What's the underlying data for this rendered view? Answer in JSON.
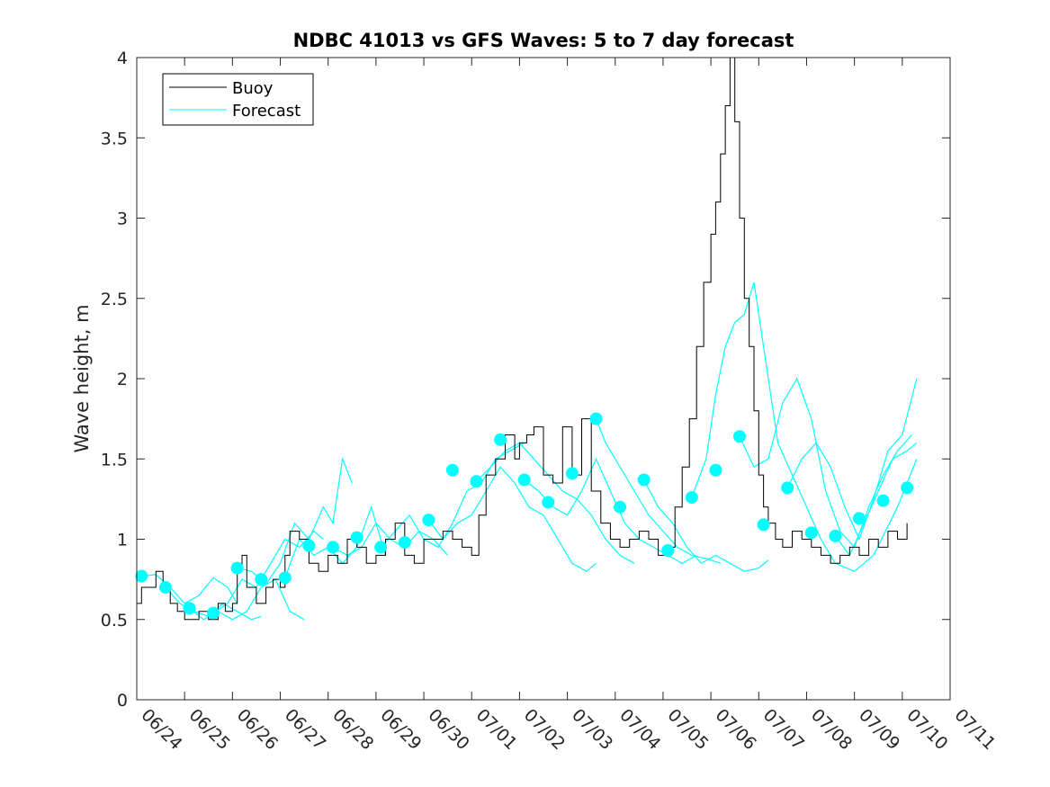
{
  "chart_data": {
    "type": "line",
    "title": "NDBC 41013 vs GFS Waves: 5 to 7 day forecast",
    "xlabel": "",
    "ylabel": "Wave height, m",
    "x_range": [
      "06/24",
      "07/11"
    ],
    "ylim": [
      0,
      4
    ],
    "y_ticks": [
      "0",
      "0.5",
      "1",
      "1.5",
      "2",
      "2.5",
      "3",
      "3.5",
      "4"
    ],
    "x_ticks": [
      "06/24",
      "06/25",
      "06/26",
      "06/27",
      "06/28",
      "06/29",
      "06/30",
      "07/01",
      "07/02",
      "07/03",
      "07/04",
      "07/05",
      "07/06",
      "07/07",
      "07/08",
      "07/09",
      "07/10",
      "07/11"
    ],
    "grid": false,
    "legend_position": "top-left",
    "legend": [
      "Buoy",
      "Forecast"
    ],
    "colors": {
      "buoy": "#000000",
      "forecast": "#00ffff"
    },
    "series": [
      {
        "name": "Buoy",
        "x_days": [
          0,
          0.1,
          0.25,
          0.4,
          0.55,
          0.7,
          0.85,
          1,
          1.15,
          1.3,
          1.5,
          1.7,
          1.85,
          2,
          2.1,
          2.2,
          2.3,
          2.5,
          2.7,
          2.85,
          3,
          3.1,
          3.2,
          3.4,
          3.6,
          3.8,
          4,
          4.2,
          4.4,
          4.6,
          4.8,
          5,
          5.2,
          5.4,
          5.6,
          5.8,
          6,
          6.2,
          6.4,
          6.6,
          6.8,
          7,
          7.15,
          7.3,
          7.5,
          7.7,
          7.9,
          8,
          8.15,
          8.3,
          8.5,
          8.7,
          8.9,
          9.1,
          9.3,
          9.5,
          9.7,
          9.9,
          10.1,
          10.3,
          10.5,
          10.7,
          10.9,
          11.1,
          11.25,
          11.4,
          11.55,
          11.7,
          11.85,
          12,
          12.1,
          12.2,
          12.3,
          12.4,
          12.5,
          12.6,
          12.7,
          12.8,
          12.9,
          13,
          13.1,
          13.2,
          13.35,
          13.5,
          13.7,
          13.9,
          14.1,
          14.3,
          14.5,
          14.7,
          14.9,
          15.1,
          15.3,
          15.5,
          15.7,
          15.9,
          16.1
        ],
        "values": [
          0.6,
          0.7,
          0.7,
          0.8,
          0.7,
          0.6,
          0.55,
          0.5,
          0.5,
          0.55,
          0.5,
          0.6,
          0.55,
          0.6,
          0.8,
          0.9,
          0.7,
          0.6,
          0.7,
          0.75,
          0.7,
          0.9,
          1.05,
          1.0,
          0.85,
          0.8,
          0.9,
          0.85,
          1.0,
          0.95,
          0.85,
          0.9,
          1.0,
          1.1,
          0.9,
          0.85,
          1.0,
          1.0,
          1.05,
          1.0,
          0.95,
          0.9,
          1.15,
          1.4,
          1.5,
          1.65,
          1.5,
          1.6,
          1.65,
          1.7,
          1.4,
          1.35,
          1.7,
          1.4,
          1.75,
          1.3,
          1.1,
          1.0,
          0.95,
          1.0,
          1.05,
          1.0,
          0.9,
          0.95,
          1.2,
          1.45,
          1.75,
          2.2,
          2.6,
          2.9,
          3.1,
          3.4,
          3.7,
          4.0,
          3.6,
          3.0,
          2.5,
          2.2,
          1.8,
          1.4,
          1.2,
          1.1,
          1.0,
          0.95,
          1.05,
          1.0,
          0.95,
          0.9,
          0.85,
          0.9,
          0.95,
          0.9,
          1.0,
          0.95,
          1.05,
          1.0,
          1.1
        ]
      },
      {
        "name": "Forecast",
        "markers": [
          {
            "x": 0.1,
            "y": 0.77
          },
          {
            "x": 0.6,
            "y": 0.7
          },
          {
            "x": 1.1,
            "y": 0.57
          },
          {
            "x": 1.6,
            "y": 0.54
          },
          {
            "x": 2.1,
            "y": 0.82
          },
          {
            "x": 2.6,
            "y": 0.75
          },
          {
            "x": 3.1,
            "y": 0.76
          },
          {
            "x": 3.6,
            "y": 0.96
          },
          {
            "x": 4.1,
            "y": 0.95
          },
          {
            "x": 4.6,
            "y": 1.01
          },
          {
            "x": 5.1,
            "y": 0.95
          },
          {
            "x": 5.6,
            "y": 0.98
          },
          {
            "x": 6.1,
            "y": 1.12
          },
          {
            "x": 6.6,
            "y": 1.43
          },
          {
            "x": 7.1,
            "y": 1.36
          },
          {
            "x": 7.6,
            "y": 1.62
          },
          {
            "x": 8.1,
            "y": 1.37
          },
          {
            "x": 8.6,
            "y": 1.23
          },
          {
            "x": 9.1,
            "y": 1.41
          },
          {
            "x": 9.6,
            "y": 1.75
          },
          {
            "x": 10.1,
            "y": 1.2
          },
          {
            "x": 10.6,
            "y": 1.37
          },
          {
            "x": 11.1,
            "y": 0.93
          },
          {
            "x": 11.6,
            "y": 1.26
          },
          {
            "x": 12.1,
            "y": 1.43
          },
          {
            "x": 12.6,
            "y": 1.64
          },
          {
            "x": 13.1,
            "y": 1.09
          },
          {
            "x": 13.6,
            "y": 1.32
          },
          {
            "x": 14.1,
            "y": 1.04
          },
          {
            "x": 14.6,
            "y": 1.02
          },
          {
            "x": 15.1,
            "y": 1.13
          },
          {
            "x": 15.6,
            "y": 1.24
          },
          {
            "x": 16.1,
            "y": 1.32
          }
        ],
        "traces": [
          {
            "x": [
              0.1,
              0.4,
              0.7,
              1.0,
              1.3,
              1.6,
              1.9,
              2.1
            ],
            "values": [
              0.77,
              0.78,
              0.7,
              0.6,
              0.65,
              0.76,
              0.7,
              0.6
            ]
          },
          {
            "x": [
              0.6,
              0.9,
              1.2,
              1.5,
              1.8,
              2.1,
              2.4,
              2.6
            ],
            "values": [
              0.7,
              0.6,
              0.55,
              0.52,
              0.6,
              0.55,
              0.5,
              0.52
            ]
          },
          {
            "x": [
              1.1,
              1.4,
              1.7,
              2.0,
              2.3,
              2.6,
              2.9,
              3.2,
              3.5
            ],
            "values": [
              0.57,
              0.5,
              0.55,
              0.5,
              0.55,
              0.7,
              0.75,
              0.55,
              0.5
            ]
          },
          {
            "x": [
              1.6,
              1.9,
              2.2,
              2.5,
              2.8,
              3.1,
              3.4,
              3.7,
              3.9
            ],
            "values": [
              0.54,
              0.6,
              0.75,
              0.7,
              0.85,
              1.0,
              0.95,
              1.05,
              1.0
            ]
          },
          {
            "x": [
              2.1,
              2.4,
              2.7,
              3.0,
              3.3,
              3.6,
              3.9,
              4.1,
              4.3,
              4.5
            ],
            "values": [
              0.82,
              0.8,
              0.72,
              0.85,
              1.1,
              1.0,
              1.2,
              1.1,
              1.5,
              1.35
            ]
          },
          {
            "x": [
              3.1,
              3.4,
              3.7,
              4.0,
              4.3,
              4.6,
              4.9,
              5.2
            ],
            "values": [
              0.76,
              1.0,
              0.9,
              0.95,
              0.85,
              0.95,
              1.2,
              0.9
            ]
          },
          {
            "x": [
              4.1,
              4.4,
              4.7,
              5.0,
              5.3,
              5.6,
              5.9,
              6.2,
              6.5
            ],
            "values": [
              0.95,
              0.9,
              0.95,
              1.1,
              1.0,
              0.95,
              1.05,
              1.0,
              0.9
            ]
          },
          {
            "x": [
              5.1,
              5.4,
              5.7,
              6.0,
              6.3,
              6.6,
              6.9,
              7.2,
              7.5,
              7.8,
              8.1
            ],
            "values": [
              0.95,
              1.05,
              1.15,
              1.0,
              0.95,
              1.1,
              1.3,
              1.35,
              1.5,
              1.55,
              1.6
            ]
          },
          {
            "x": [
              6.1,
              6.4,
              6.7,
              7.0,
              7.3,
              7.6,
              7.9,
              8.2,
              8.5,
              8.8,
              9.1,
              9.4,
              9.6
            ],
            "values": [
              1.12,
              1.0,
              1.1,
              1.15,
              1.3,
              1.45,
              1.35,
              1.2,
              1.15,
              1.0,
              0.85,
              0.8,
              0.85
            ]
          },
          {
            "x": [
              7.1,
              7.4,
              7.7,
              8.0,
              8.3,
              8.6,
              8.9,
              9.2,
              9.5,
              9.8,
              10.1,
              10.4
            ],
            "values": [
              1.36,
              1.45,
              1.55,
              1.6,
              1.5,
              1.4,
              1.3,
              1.25,
              1.15,
              1.0,
              0.9,
              0.85
            ]
          },
          {
            "x": [
              8.1,
              8.4,
              8.7,
              9.0,
              9.3,
              9.6,
              9.9,
              10.2,
              10.5,
              10.8,
              11.1,
              11.4,
              11.7
            ],
            "values": [
              1.37,
              1.3,
              1.2,
              1.15,
              1.3,
              1.5,
              1.3,
              1.1,
              1.0,
              0.95,
              0.9,
              0.85,
              0.9
            ]
          },
          {
            "x": [
              9.6,
              9.8,
              10.1,
              10.4,
              10.7,
              11.0,
              11.3,
              11.6,
              11.9,
              12.2
            ],
            "values": [
              1.75,
              1.6,
              1.45,
              1.3,
              1.15,
              1.05,
              0.95,
              0.9,
              0.88,
              0.85
            ]
          },
          {
            "x": [
              10.6,
              10.9,
              11.2,
              11.5,
              11.8,
              12.1,
              12.4,
              12.7,
              13.0,
              13.2
            ],
            "values": [
              1.37,
              1.2,
              1.1,
              0.95,
              0.85,
              0.9,
              0.85,
              0.8,
              0.82,
              0.87
            ]
          },
          {
            "x": [
              11.6,
              11.9,
              12.1,
              12.3,
              12.5,
              12.7,
              12.9,
              13.1,
              13.4,
              13.7,
              14.0,
              14.3,
              14.6,
              15.0,
              15.4,
              15.9,
              16.3
            ],
            "values": [
              1.26,
              1.5,
              1.9,
              2.2,
              2.35,
              2.4,
              2.6,
              2.2,
              1.6,
              1.4,
              1.2,
              1.0,
              0.85,
              0.8,
              0.9,
              1.2,
              1.5
            ]
          },
          {
            "x": [
              12.6,
              12.9,
              13.2,
              13.5,
              13.8,
              14.1,
              14.4,
              14.7,
              15.0,
              15.3,
              15.6,
              15.9,
              16.2
            ],
            "values": [
              1.64,
              1.45,
              1.5,
              1.85,
              2.0,
              1.75,
              1.3,
              1.05,
              0.95,
              1.2,
              1.4,
              1.55,
              1.65
            ]
          },
          {
            "x": [
              13.6,
              13.9,
              14.2,
              14.5,
              14.8,
              15.1,
              15.4,
              15.7,
              16.0,
              16.3
            ],
            "values": [
              1.32,
              1.5,
              1.6,
              1.45,
              1.2,
              1.0,
              1.25,
              1.55,
              1.65,
              2.0
            ]
          },
          {
            "x": [
              14.6,
              14.9,
              15.2,
              15.5,
              15.8,
              16.1,
              16.3
            ],
            "values": [
              1.02,
              0.9,
              1.1,
              1.3,
              1.5,
              1.55,
              1.6
            ]
          }
        ]
      }
    ]
  }
}
